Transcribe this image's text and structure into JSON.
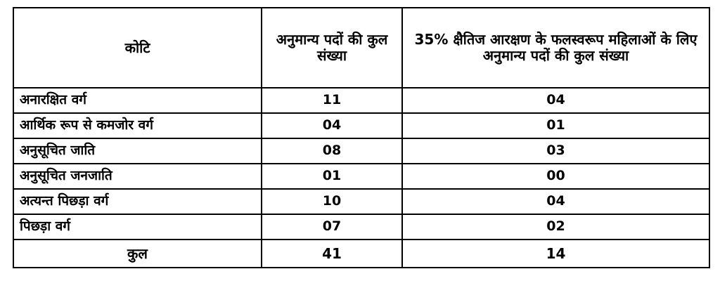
{
  "table": {
    "headers": [
      "कोटि",
      "अनुमान्य पदों की कुल संख्या",
      "35% क्षैतिज आरक्षण के फलस्वरूप महिलाओं के लिए अनुमान्य पदों की कुल संख्या"
    ],
    "rows": [
      {
        "category": "अनारक्षित वर्ग",
        "posts": "11",
        "women_posts": "04"
      },
      {
        "category": "आर्थिक रूप से कमजोर वर्ग",
        "posts": "04",
        "women_posts": "01"
      },
      {
        "category": "अनुसूचित जाति",
        "posts": "08",
        "women_posts": "03"
      },
      {
        "category": "अनुसूचित जनजाति",
        "posts": "01",
        "women_posts": "00"
      },
      {
        "category": "अत्यन्त पिछड़ा वर्ग",
        "posts": "10",
        "women_posts": "04"
      },
      {
        "category": "पिछड़ा वर्ग",
        "posts": "07",
        "women_posts": "02"
      }
    ],
    "total": {
      "label": "कुल",
      "posts": "41",
      "women_posts": "14"
    }
  }
}
